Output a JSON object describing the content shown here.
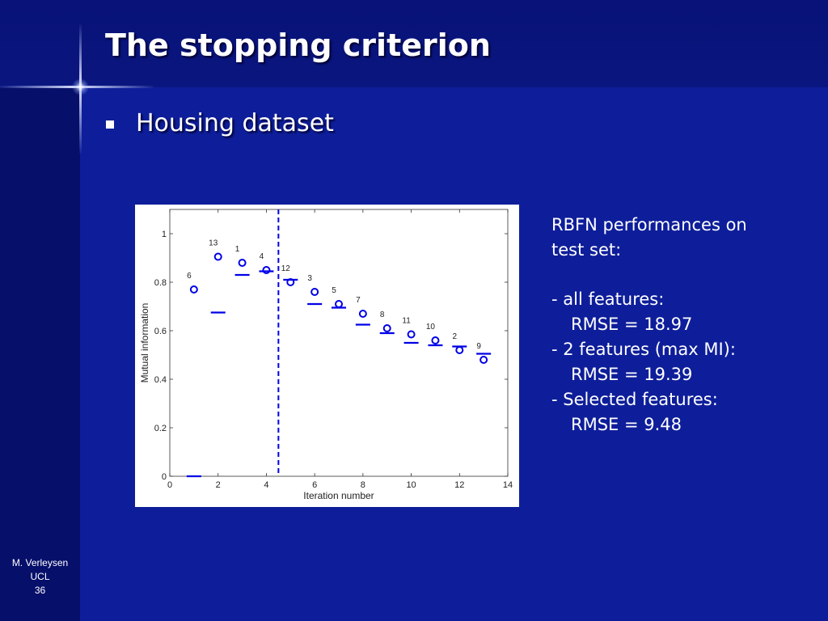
{
  "slide": {
    "title": "The stopping criterion",
    "bullet": "Housing dataset"
  },
  "side_text": {
    "heading_line1": "RBFN performances on",
    "heading_line2": "test set:",
    "item1": "- all features:",
    "item1_value": "RMSE = 18.97",
    "item2": "- 2 features (max MI):",
    "item2_value": "RMSE = 19.39",
    "item3": "- Selected features:",
    "item3_value": "RMSE = 9.48"
  },
  "footer": {
    "author": "M. Verleysen",
    "institution": "UCL",
    "page": "36"
  },
  "colors": {
    "background": "#0e1e9a",
    "marker": "#0000e6"
  },
  "chart_data": {
    "type": "scatter",
    "xlabel": "Iteration number",
    "ylabel": "Mutual information",
    "xlim": [
      0,
      14
    ],
    "ylim": [
      0,
      1.1
    ],
    "xticks": [
      0,
      2,
      4,
      6,
      8,
      10,
      12,
      14
    ],
    "yticks": [
      0,
      0.2,
      0.4,
      0.6,
      0.8,
      1
    ],
    "grid": false,
    "vline_x": 4.5,
    "circles": [
      {
        "x": 1,
        "y": 0.77,
        "label": "6"
      },
      {
        "x": 2,
        "y": 0.905,
        "label": "13"
      },
      {
        "x": 3,
        "y": 0.88,
        "label": "1"
      },
      {
        "x": 4,
        "y": 0.85,
        "label": "4"
      },
      {
        "x": 5,
        "y": 0.8,
        "label": "12"
      },
      {
        "x": 6,
        "y": 0.76,
        "label": "3"
      },
      {
        "x": 7,
        "y": 0.71,
        "label": "5"
      },
      {
        "x": 8,
        "y": 0.67,
        "label": "7"
      },
      {
        "x": 9,
        "y": 0.61,
        "label": "8"
      },
      {
        "x": 10,
        "y": 0.585,
        "label": "11"
      },
      {
        "x": 11,
        "y": 0.56,
        "label": "10"
      },
      {
        "x": 12,
        "y": 0.52,
        "label": "2"
      },
      {
        "x": 13,
        "y": 0.48,
        "label": "9"
      }
    ],
    "dashes": [
      {
        "x": 1,
        "y": 0.0
      },
      {
        "x": 2,
        "y": 0.675
      },
      {
        "x": 3,
        "y": 0.83
      },
      {
        "x": 4,
        "y": 0.845
      },
      {
        "x": 5,
        "y": 0.81
      },
      {
        "x": 6,
        "y": 0.71
      },
      {
        "x": 7,
        "y": 0.695
      },
      {
        "x": 8,
        "y": 0.625
      },
      {
        "x": 9,
        "y": 0.59
      },
      {
        "x": 10,
        "y": 0.55
      },
      {
        "x": 11,
        "y": 0.54
      },
      {
        "x": 12,
        "y": 0.535
      },
      {
        "x": 13,
        "y": 0.505
      }
    ]
  }
}
